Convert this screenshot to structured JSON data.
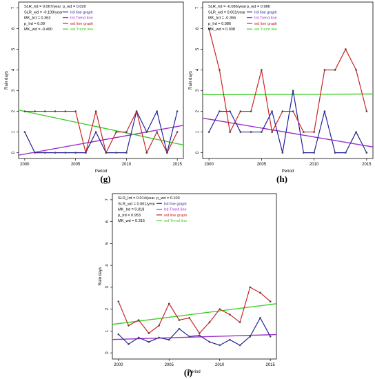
{
  "chart_data": [
    {
      "panel_label": "(g)",
      "type": "line",
      "xlabel": "Period",
      "ylabel": "Rain days",
      "xlim": [
        2000,
        2015
      ],
      "ylim": [
        0,
        7
      ],
      "x_ticks": [
        2000,
        2005,
        2010,
        2015
      ],
      "y_ticks": [
        0,
        1,
        2,
        3,
        4,
        5,
        6,
        7
      ],
      "x": [
        2000,
        2001,
        2002,
        2003,
        2004,
        2005,
        2006,
        2007,
        2008,
        2009,
        2010,
        2011,
        2012,
        2013,
        2014,
        2015
      ],
      "series": [
        {
          "name": "Ird line graph",
          "color": "#1f1fa0",
          "values": [
            1,
            0,
            0,
            0,
            0,
            0,
            0,
            1,
            0,
            0,
            0,
            2,
            1,
            2,
            0,
            2
          ]
        },
        {
          "name": "wd line graph",
          "color": "#cc2222",
          "values": [
            2,
            2,
            2,
            2,
            2,
            2,
            0,
            2,
            0,
            1,
            1,
            2,
            0,
            1,
            0,
            1
          ]
        }
      ],
      "trend_lines": [
        {
          "name": "Ird Trend line",
          "color": "#9a30c8",
          "from": [
            1998.5,
            -0.2
          ],
          "to": [
            2016.5,
            1.4
          ]
        },
        {
          "name": "wd Trend line",
          "color": "#3ecf2a",
          "from": [
            1998.5,
            2.15
          ],
          "to": [
            2016.5,
            0.28
          ]
        }
      ],
      "stats": [
        {
          "label": "SLR_Ird = 0.067/year",
          "col": 0
        },
        {
          "label": "p_wd = 0.020",
          "col": 1
        },
        {
          "label": "SLR_wd = -0.109/year",
          "col": 0
        },
        {
          "label": "MK_Ird = 0.363",
          "col": 0
        },
        {
          "label": "p_Ird = 0.09",
          "col": 0
        },
        {
          "label": "MK_wd = -0.490",
          "col": 0
        }
      ]
    },
    {
      "panel_label": "(h)",
      "type": "line",
      "xlabel": "Period",
      "ylabel": "Rain days",
      "xlim": [
        2000,
        2015
      ],
      "ylim": [
        0,
        7
      ],
      "x_ticks": [
        2000,
        2005,
        2010,
        2015
      ],
      "y_ticks": [
        0,
        1,
        2,
        3,
        4,
        5,
        6,
        7
      ],
      "x": [
        2000,
        2001,
        2002,
        2003,
        2004,
        2005,
        2006,
        2007,
        2008,
        2009,
        2010,
        2011,
        2012,
        2013,
        2014,
        2015
      ],
      "series": [
        {
          "name": "Ird line graph",
          "color": "#1f1fa0",
          "values": [
            1,
            2,
            2,
            1,
            1,
            1,
            2,
            0,
            3,
            0,
            0,
            2,
            0,
            0,
            1,
            0
          ]
        },
        {
          "name": "wd line graph",
          "color": "#cc2222",
          "values": [
            6,
            4,
            1,
            2,
            2,
            4,
            1,
            2,
            2,
            1,
            1,
            4,
            4,
            5,
            4,
            2
          ]
        }
      ],
      "trend_lines": [
        {
          "name": "Ird Trend line",
          "color": "#9a30c8",
          "from": [
            1998.5,
            1.75
          ],
          "to": [
            2016.5,
            0.2
          ]
        },
        {
          "name": "wd Trend line",
          "color": "#3ecf2a",
          "from": [
            1998.5,
            2.8
          ],
          "to": [
            2016.5,
            2.84
          ]
        }
      ],
      "stats": [
        {
          "label": "SLR_Ird = -0.086/year",
          "col": 0
        },
        {
          "label": "p_wd = 0.986",
          "col": 1
        },
        {
          "label": "SLR_wd = 0.001/year",
          "col": 0
        },
        {
          "label": "MK_Ird = -0.356",
          "col": 0
        },
        {
          "label": "p_Ird = 0.086",
          "col": 0
        },
        {
          "label": "MK_wd = 0.038",
          "col": 0
        }
      ]
    },
    {
      "panel_label": "(i)",
      "type": "line",
      "xlabel": "Period",
      "ylabel": "Rain days",
      "xlim": [
        2000,
        2015
      ],
      "ylim": [
        0,
        7
      ],
      "x_ticks": [
        2000,
        2005,
        2010,
        2015
      ],
      "y_ticks": [
        0,
        1,
        2,
        3,
        4,
        5,
        6,
        7
      ],
      "x": [
        2000,
        2001,
        2002,
        2003,
        2004,
        2005,
        2006,
        2007,
        2008,
        2009,
        2010,
        2011,
        2012,
        2013,
        2014,
        2015
      ],
      "series": [
        {
          "name": "Ird line graph",
          "color": "#1f1fa0",
          "values": [
            0.85,
            0.4,
            0.7,
            0.5,
            0.7,
            0.6,
            1.1,
            0.75,
            0.8,
            0.5,
            0.35,
            0.6,
            0.35,
            0.75,
            1.6,
            0.75
          ]
        },
        {
          "name": "wd line graph",
          "color": "#cc2222",
          "values": [
            2.35,
            1.25,
            1.5,
            0.9,
            1.25,
            2.25,
            1.5,
            1.6,
            0.9,
            1.4,
            2.0,
            1.75,
            1.4,
            3.0,
            2.75,
            2.35
          ]
        }
      ],
      "trend_lines": [
        {
          "name": "Ird Trend line",
          "color": "#9a30c8",
          "from": [
            1998.5,
            0.6
          ],
          "to": [
            2016.5,
            0.85
          ]
        },
        {
          "name": "wd Trend line",
          "color": "#3ecf2a",
          "from": [
            1998.5,
            1.25
          ],
          "to": [
            2016.5,
            2.3
          ]
        }
      ],
      "stats": [
        {
          "label": "SLR_Ird = 0.014/year",
          "col": 0
        },
        {
          "label": "p_wd = 0.103",
          "col": 1
        },
        {
          "label": "SLR_wd = 0.061/year",
          "col": 0
        },
        {
          "label": "MK_Ird = 0.018",
          "col": 0
        },
        {
          "label": "p_Ird = 0.953",
          "col": 0
        },
        {
          "label": "MK_wd = 0.315",
          "col": 0
        }
      ]
    }
  ]
}
